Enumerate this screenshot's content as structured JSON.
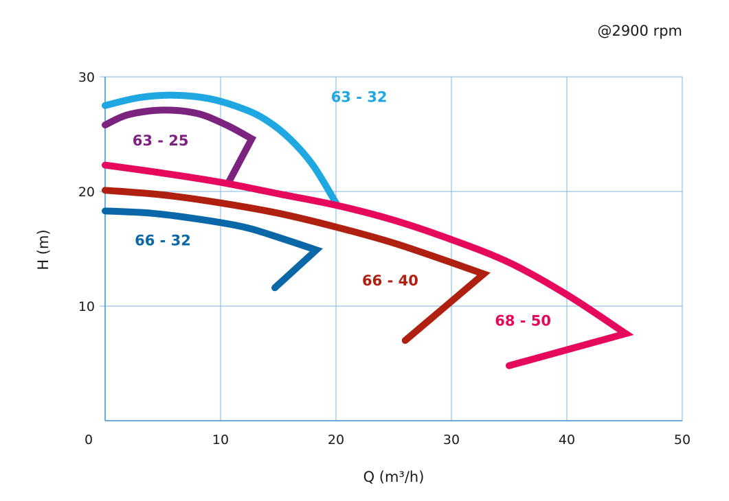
{
  "speed_note": "@2900 rpm",
  "chart_data": {
    "type": "line",
    "xlabel": "Q (m³/h)",
    "ylabel": "H (m)",
    "xlim": [
      0,
      50
    ],
    "ylim": [
      0,
      30
    ],
    "x_ticks": [
      "0",
      "10",
      "20",
      "30",
      "40",
      "50"
    ],
    "y_ticks": [
      "10",
      "20",
      "30"
    ],
    "grid": true,
    "series": [
      {
        "name": "63 - 32",
        "color": "#1ea7e1",
        "points": [
          [
            0,
            27.5
          ],
          [
            3,
            28.2
          ],
          [
            6,
            28.4
          ],
          [
            9,
            28.1
          ],
          [
            12,
            27.2
          ],
          [
            14,
            26.2
          ],
          [
            16,
            24.6
          ],
          [
            18,
            22.3
          ],
          [
            20,
            19.0
          ]
        ]
      },
      {
        "name": "63 - 25",
        "color": "#7c2380",
        "points": [
          [
            0,
            25.8
          ],
          [
            2,
            26.7
          ],
          [
            5,
            27.1
          ],
          [
            8,
            26.8
          ],
          [
            10.5,
            25.8
          ],
          [
            12.7,
            24.6
          ],
          [
            10.7,
            20.8
          ]
        ]
      },
      {
        "name": "68 - 50",
        "color": "#e5085d",
        "points": [
          [
            0,
            22.3
          ],
          [
            5,
            21.6
          ],
          [
            10,
            20.8
          ],
          [
            15,
            19.8
          ],
          [
            20,
            18.8
          ],
          [
            25,
            17.5
          ],
          [
            30,
            15.8
          ],
          [
            35,
            13.8
          ],
          [
            40,
            11.0
          ],
          [
            45.1,
            7.6
          ],
          [
            35,
            4.8
          ]
        ]
      },
      {
        "name": "66 - 40",
        "color": "#b02010",
        "points": [
          [
            0,
            20.1
          ],
          [
            5,
            19.7
          ],
          [
            10,
            19.0
          ],
          [
            15,
            18.1
          ],
          [
            20,
            16.9
          ],
          [
            25,
            15.5
          ],
          [
            30,
            13.8
          ],
          [
            32.8,
            12.8
          ],
          [
            26,
            7.0
          ]
        ]
      },
      {
        "name": "66 - 32",
        "color": "#0a67a8",
        "points": [
          [
            0,
            18.3
          ],
          [
            4,
            18.1
          ],
          [
            8,
            17.6
          ],
          [
            12,
            16.9
          ],
          [
            15,
            16.0
          ],
          [
            18.3,
            14.9
          ],
          [
            14.7,
            11.6
          ]
        ]
      }
    ]
  }
}
